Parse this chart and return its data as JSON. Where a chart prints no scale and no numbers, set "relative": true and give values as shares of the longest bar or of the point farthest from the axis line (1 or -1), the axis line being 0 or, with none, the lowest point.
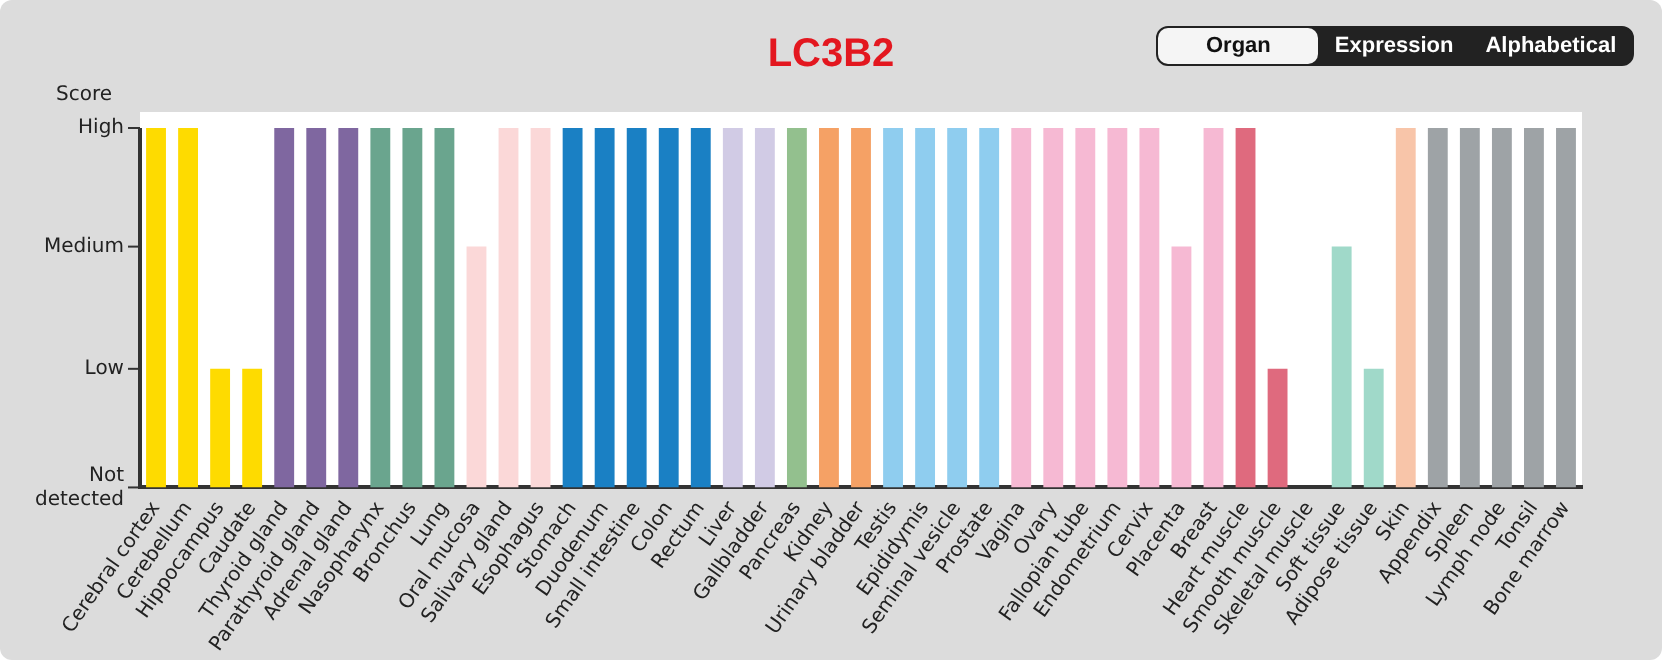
{
  "chart_data": {
    "type": "bar",
    "title": "LC3B2",
    "ylabel": "Score",
    "relative": true,
    "annotations": [
      "Not detected",
      "Low",
      "Medium",
      "High",
      "Organ",
      "Expression",
      "Alphabetical"
    ],
    "categories": [
      "Cerebral cortex",
      "Cerebellum",
      "Hippocampus",
      "Caudate",
      "Thyroid gland",
      "Parathyroid gland",
      "Adrenal gland",
      "Nasopharynx",
      "Bronchus",
      "Lung",
      "Oral mucosa",
      "Salivary gland",
      "Esophagus",
      "Stomach",
      "Duodenum",
      "Small intestine",
      "Colon",
      "Rectum",
      "Liver",
      "Gallbladder",
      "Pancreas",
      "Kidney",
      "Urinary bladder",
      "Testis",
      "Epididymis",
      "Seminal vesicle",
      "Prostate",
      "Vagina",
      "Ovary",
      "Fallopian tube",
      "Endometrium",
      "Cervix",
      "Placenta",
      "Breast",
      "Heart muscle",
      "Smooth muscle",
      "Skeletal muscle",
      "Soft tissue",
      "Adipose tissue",
      "Skin",
      "Appendix",
      "Spleen",
      "Lymph node",
      "Tonsil",
      "Bone marrow"
    ],
    "values": [
      1,
      1,
      0.33,
      0.33,
      1,
      1,
      1,
      1,
      1,
      1,
      0.67,
      1,
      1,
      1,
      1,
      1,
      1,
      1,
      1,
      1,
      1,
      1,
      1,
      1,
      1,
      1,
      1,
      1,
      1,
      1,
      1,
      1,
      0.67,
      1,
      1,
      0.33,
      0,
      0.67,
      0.33,
      1,
      1,
      1,
      1,
      1,
      1
    ],
    "colors": [
      "#fedb00",
      "#fedb00",
      "#fedb00",
      "#fedb00",
      "#7f67a0",
      "#7f67a0",
      "#7f67a0",
      "#6aa58e",
      "#6aa58e",
      "#6aa58e",
      "#fbd8d8",
      "#fbd8d8",
      "#fbd8d8",
      "#1a80c4",
      "#1a80c4",
      "#1a80c4",
      "#1a80c4",
      "#1a80c4",
      "#d1cbe5",
      "#d1cbe5",
      "#93c08e",
      "#f5a165",
      "#f5a165",
      "#8fcdef",
      "#8fcdef",
      "#8fcdef",
      "#8fcdef",
      "#f6b9d3",
      "#f6b9d3",
      "#f6b9d3",
      "#f6b9d3",
      "#f6b9d3",
      "#f6b9d3",
      "#f6b9d3",
      "#df6a7e",
      "#df6a7e",
      "#df6a7e",
      "#a0d9c9",
      "#a0d9c9",
      "#f8c5a9",
      "#9ea3a6",
      "#9ea3a6",
      "#9ea3a6",
      "#9ea3a6",
      "#9ea3a6"
    ],
    "grid": false,
    "legend": false
  }
}
